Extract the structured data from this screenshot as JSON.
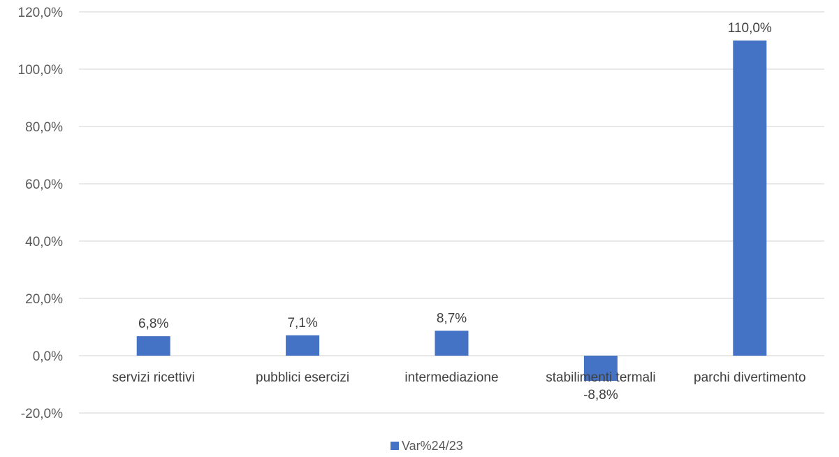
{
  "chart_data": {
    "type": "bar",
    "categories": [
      "servizi ricettivi",
      "pubblici esercizi",
      "intermediazione",
      "stabilimenti termali",
      "parchi divertimento"
    ],
    "series": [
      {
        "name": "Var%24/23",
        "values": [
          6.8,
          7.1,
          8.7,
          -8.8,
          110.0
        ],
        "labels": [
          "6,8%",
          "7,1%",
          "8,7%",
          "-8,8%",
          "110,0%"
        ]
      }
    ],
    "yticks": [
      -20,
      0,
      20,
      40,
      60,
      80,
      100,
      120
    ],
    "ytick_labels": [
      "-20,0%",
      "0,0%",
      "20,0%",
      "40,0%",
      "60,0%",
      "80,0%",
      "100,0%",
      "120,0%"
    ],
    "ylim": [
      -20,
      120
    ],
    "grid": true,
    "legend": "bottom",
    "title": "",
    "xlabel": "",
    "ylabel": "",
    "colors": {
      "bar": "#4472c4",
      "grid": "#d9d9d9"
    }
  }
}
